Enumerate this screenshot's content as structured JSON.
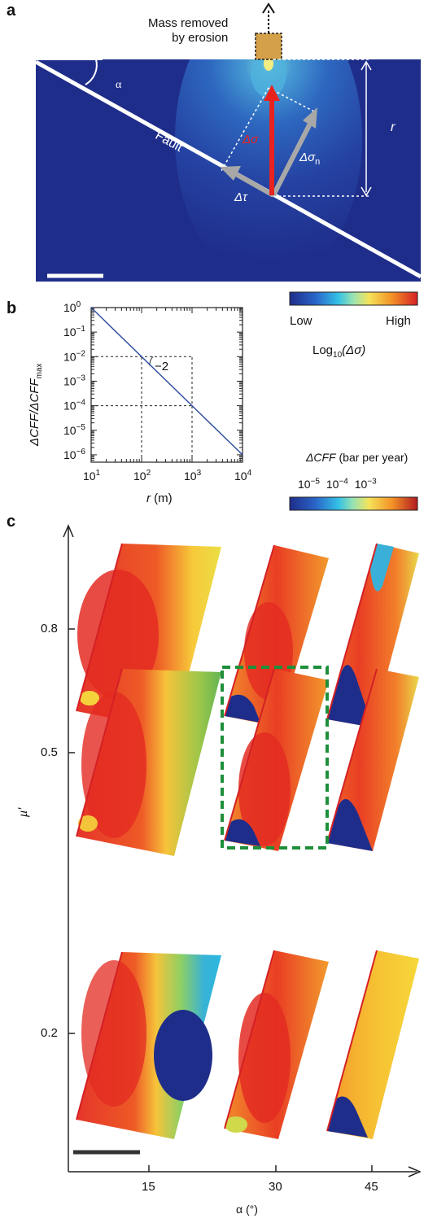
{
  "panels": {
    "a": {
      "letter": "a",
      "mass_label_line1": "Mass removed",
      "mass_label_line2": "by erosion",
      "alpha": "α",
      "fault": "Fault",
      "delta_sigma": "Δσ",
      "delta_sigma_n": "Δσ",
      "delta_sigma_n_sub": "n",
      "delta_tau": "Δτ",
      "r": "r"
    },
    "a_colorbar": {
      "low": "Low",
      "high": "High",
      "title_prefix": "Log",
      "title_sub": "10",
      "title_suffix": "(Δσ)"
    },
    "b": {
      "letter": "b",
      "ylabel_main": "ΔCFF/ΔCFF",
      "ylabel_sub": "max",
      "xlabel_italic": "r",
      "xlabel_unit": " (m)",
      "slope_label": "−2"
    },
    "c": {
      "letter": "c",
      "colorbar_title_italic": "ΔCFF",
      "colorbar_title_rest": " (bar per year)",
      "ylabel": "μ′",
      "xlabel": "α (°)"
    }
  },
  "chart_data": {
    "type": "line",
    "title": "",
    "xlabel": "r (m)",
    "ylabel": "ΔCFF/ΔCFFmax",
    "xscale": "log",
    "yscale": "log",
    "xlim": [
      10,
      10000
    ],
    "ylim": [
      5e-07,
      1
    ],
    "x_ticks": [
      {
        "v": 10,
        "b": "10",
        "e": "1"
      },
      {
        "v": 100,
        "b": "10",
        "e": "2"
      },
      {
        "v": 1000,
        "b": "10",
        "e": "3"
      },
      {
        "v": 10000,
        "b": "10",
        "e": "4"
      }
    ],
    "y_ticks": [
      {
        "v": 1,
        "b": "10",
        "e": "0"
      },
      {
        "v": 0.1,
        "b": "10",
        "e": "−1"
      },
      {
        "v": 0.01,
        "b": "10",
        "e": "−2"
      },
      {
        "v": 0.001,
        "b": "10",
        "e": "−3"
      },
      {
        "v": 0.0001,
        "b": "10",
        "e": "−4"
      },
      {
        "v": 1e-05,
        "b": "10",
        "e": "−5"
      },
      {
        "v": 1e-06,
        "b": "10",
        "e": "−6"
      }
    ],
    "series": [
      {
        "x": [
          10,
          10000
        ],
        "y": [
          1,
          1e-06
        ],
        "color": "#2b4aa0"
      }
    ],
    "guide_lines": [
      {
        "x": [
          10,
          1000
        ],
        "y": [
          0.01,
          0.01
        ]
      },
      {
        "x": [
          10,
          1000
        ],
        "y": [
          0.0001,
          0.0001
        ]
      },
      {
        "x": [
          100,
          100
        ],
        "y": [
          5e-07,
          0.01
        ]
      },
      {
        "x": [
          1000,
          1000
        ],
        "y": [
          5e-07,
          0.01
        ]
      }
    ],
    "grid": false
  },
  "colorbar_c_ticks": [
    {
      "b": "10",
      "e": "−5"
    },
    {
      "b": "10",
      "e": "−4"
    },
    {
      "b": "10",
      "e": "−3"
    }
  ],
  "panel_c_axes": {
    "y_ticks": [
      "0.8",
      "0.5",
      "0.2"
    ],
    "x_ticks": [
      "15",
      "30",
      "45"
    ]
  },
  "colors": {
    "panel_a_background": "#1f2d8a",
    "fault_line": "#ffffff",
    "red_arrow": "#e8231f",
    "grey_arrow": "#a8a8a8",
    "highlight_box": "#1e8f3a",
    "mass_box": "#d4a04a"
  }
}
